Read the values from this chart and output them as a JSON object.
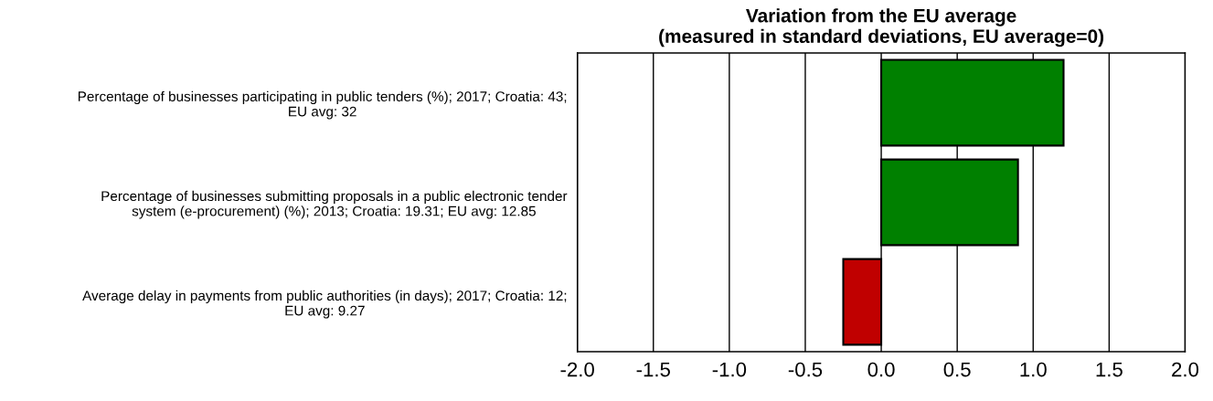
{
  "chart_data": {
    "type": "bar",
    "orientation": "horizontal",
    "title": "Variation from the EU average\n(measured in standard deviations, EU average=0)",
    "categories": [
      "Percentage of businesses participating in public tenders (%); 2017; Croatia: 43;\nEU avg: 32",
      "Percentage of businesses submitting proposals in a public electronic tender\nsystem (e-procurement) (%); 2013; Croatia: 19.31; EU avg: 12.85",
      "Average delay in payments from public authorities (in days); 2017; Croatia: 12;\nEU avg: 9.27"
    ],
    "values": [
      1.2,
      0.9,
      -0.25
    ],
    "colors": [
      "#008000",
      "#008000",
      "#c00000"
    ],
    "xlim": [
      -2.0,
      2.0
    ],
    "xticks": [
      {
        "value": -2.0,
        "label": "-2.0"
      },
      {
        "value": -1.5,
        "label": "-1.5"
      },
      {
        "value": -1.0,
        "label": "-1.0"
      },
      {
        "value": -0.5,
        "label": "-0.5"
      },
      {
        "value": 0.0,
        "label": "0.0"
      },
      {
        "value": 0.5,
        "label": "0.5"
      },
      {
        "value": 1.0,
        "label": "1.0"
      },
      {
        "value": 1.5,
        "label": "1.5"
      },
      {
        "value": 2.0,
        "label": "2.0"
      }
    ],
    "grid": "x"
  }
}
